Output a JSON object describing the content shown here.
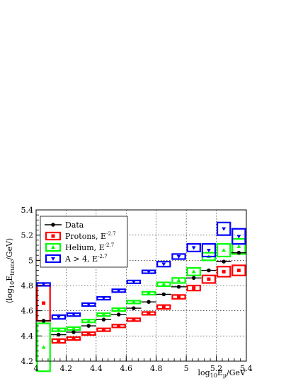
{
  "chart_data": {
    "type": "scatter",
    "xlabel_main": "log",
    "xlabel_sub": "10",
    "xlabel_mid": "E",
    "xlabel_musub": "μ",
    "xlabel_unit": "/GeV",
    "ylabel_pre": "⟨log",
    "ylabel_sub": "10",
    "ylabel_mid": "E",
    "ylabel_trunc": "trunc",
    "ylabel_unit": "/GeV⟩",
    "xlim": [
      4.0,
      5.4
    ],
    "ylim": [
      4.2,
      5.4
    ],
    "grid": true,
    "legend_position": "top-left",
    "x_ticks": [
      4,
      4.2,
      4.4,
      4.6,
      4.8,
      5,
      5.2,
      5.4
    ],
    "x_tick_labels": [
      "4",
      "4.2",
      "4.4",
      "4.6",
      "4.8",
      "5",
      "5.2",
      "5.4"
    ],
    "y_ticks": [
      4.2,
      4.4,
      4.6,
      4.8,
      5.0,
      5.2,
      5.4
    ],
    "y_tick_labels": [
      "4.2",
      "4.4",
      "4.6",
      "4.8",
      "5",
      "5.2",
      "5.4"
    ],
    "series": [
      {
        "name": "Data",
        "exp": "",
        "color": "#000000",
        "marker": "circle",
        "style": "errorbar",
        "x": [
          4.05,
          4.15,
          4.25,
          4.35,
          4.45,
          4.55,
          4.65,
          4.75,
          4.85,
          4.95,
          5.05,
          5.15,
          5.25,
          5.35
        ],
        "y": [
          4.52,
          4.41,
          4.43,
          4.48,
          4.53,
          4.57,
          4.62,
          4.67,
          4.73,
          4.79,
          4.86,
          4.92,
          4.99,
          5.06
        ]
      },
      {
        "name": "Protons, E",
        "exp": "-2.7",
        "color": "#ff0000",
        "marker": "square",
        "style": "box",
        "x": [
          4.05,
          4.15,
          4.25,
          4.35,
          4.45,
          4.55,
          4.65,
          4.75,
          4.85,
          4.95,
          5.05,
          5.15,
          5.25,
          5.35
        ],
        "y": [
          4.66,
          4.36,
          4.38,
          4.42,
          4.45,
          4.48,
          4.53,
          4.58,
          4.63,
          4.71,
          4.78,
          4.85,
          4.91,
          4.92
        ],
        "box_halfheight": [
          0.14,
          0.015,
          0.01,
          0.01,
          0.01,
          0.01,
          0.01,
          0.01,
          0.015,
          0.015,
          0.02,
          0.03,
          0.04,
          0.04
        ]
      },
      {
        "name": "Helium, E",
        "exp": "-2.7",
        "color": "#00ff00",
        "marker": "triangle-up",
        "style": "box",
        "x": [
          4.05,
          4.15,
          4.25,
          4.35,
          4.45,
          4.55,
          4.65,
          4.75,
          4.85,
          4.95,
          5.05,
          5.15,
          5.25,
          5.35
        ],
        "y": [
          4.31,
          4.45,
          4.46,
          4.52,
          4.57,
          4.61,
          4.67,
          4.74,
          4.81,
          4.84,
          4.91,
          5.03,
          5.08,
          5.11
        ],
        "box_halfheight": [
          0.19,
          0.01,
          0.01,
          0.01,
          0.01,
          0.01,
          0.01,
          0.01,
          0.015,
          0.02,
          0.03,
          0.03,
          0.05,
          0.06
        ]
      },
      {
        "name": "A > 4, E",
        "exp": "-2.7",
        "color": "#0000ff",
        "marker": "triangle-down",
        "style": "box",
        "x": [
          4.05,
          4.15,
          4.25,
          4.35,
          4.45,
          4.55,
          4.65,
          4.75,
          4.85,
          4.95,
          5.05,
          5.15,
          5.25,
          5.35
        ],
        "y": [
          4.81,
          4.55,
          4.57,
          4.65,
          4.7,
          4.76,
          4.83,
          4.91,
          4.97,
          5.03,
          5.1,
          5.08,
          5.25,
          5.19
        ],
        "box_halfheight": [
          0.01,
          0.015,
          0.01,
          0.01,
          0.01,
          0.01,
          0.01,
          0.01,
          0.02,
          0.02,
          0.03,
          0.05,
          0.05,
          0.06
        ]
      }
    ]
  }
}
